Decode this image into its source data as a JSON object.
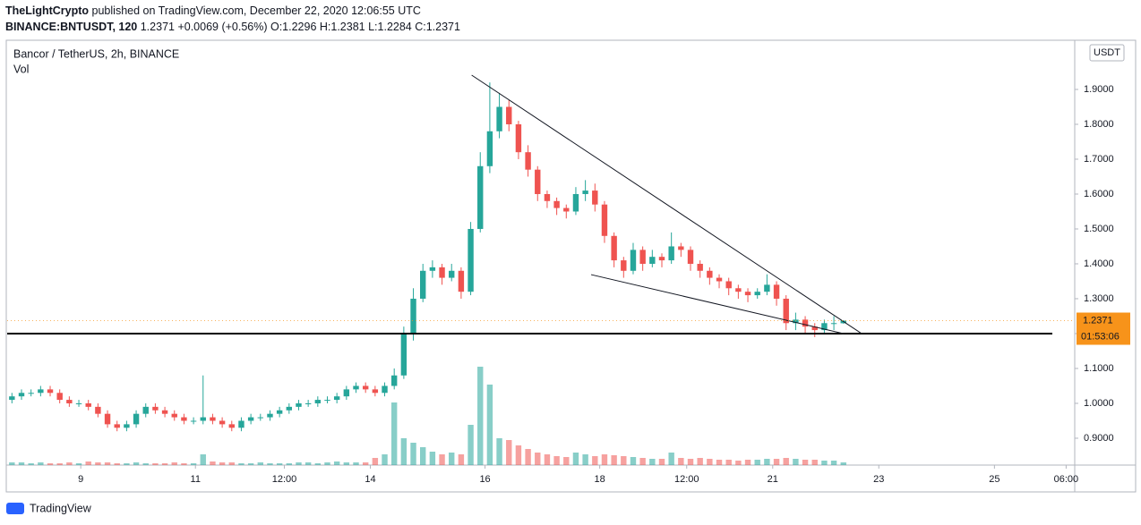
{
  "header": {
    "author": "TheLightCrypto",
    "published": "published on TradingView.com, December 22, 2020 12:06:55 UTC",
    "symbol": "BINANCE:BNTUSDT, 120",
    "quote": "1.2371 +0.0069 (+0.56%) O:1.2296 H:1.2381 L:1.2284 C:1.2371"
  },
  "footer": {
    "brand": "TradingView"
  },
  "chart_data": {
    "type": "candlestick",
    "title": "Bancor / TetherUS, 2h, BINANCE",
    "volume_title": "Vol",
    "currency": "USDT",
    "last_price": 1.2371,
    "last_price_label": "1.2371",
    "countdown": "01:53:06",
    "up_color": "#26a69a",
    "down_color": "#ef5350",
    "last_price_color": "#f7931a",
    "xlim": [
      -0.5,
      111.2
    ],
    "ylim": [
      0.823,
      2.041
    ],
    "volume_lim": [
      0,
      130
    ],
    "xticks": [
      {
        "value": 7.2,
        "label": "9"
      },
      {
        "value": 19.2,
        "label": "11"
      },
      {
        "value": 28.5,
        "label": "12:00"
      },
      {
        "value": 37.5,
        "label": "14"
      },
      {
        "value": 49.5,
        "label": "16"
      },
      {
        "value": 61.5,
        "label": "18"
      },
      {
        "value": 70.6,
        "label": "12:00"
      },
      {
        "value": 79.6,
        "label": "21"
      },
      {
        "value": 90.7,
        "label": "23"
      },
      {
        "value": 102.8,
        "label": "25"
      },
      {
        "value": 110.3,
        "label": "06:00"
      }
    ],
    "yticks": [
      {
        "value": 0.9,
        "label": "0.9000"
      },
      {
        "value": 1.0,
        "label": "1.0000"
      },
      {
        "value": 1.1,
        "label": "1.1000"
      },
      {
        "value": 1.2,
        "label": "1.2000"
      },
      {
        "value": 1.3,
        "label": "1.3000"
      },
      {
        "value": 1.4,
        "label": "1.4000"
      },
      {
        "value": 1.5,
        "label": "1.5000"
      },
      {
        "value": 1.6,
        "label": "1.6000"
      },
      {
        "value": 1.7,
        "label": "1.7000"
      },
      {
        "value": 1.8,
        "label": "1.8000"
      },
      {
        "value": 1.9,
        "label": "1.9000"
      }
    ],
    "hlines": [
      1.2
    ],
    "trendlines": [
      {
        "x": [
          48.1,
          88.9
        ],
        "y": [
          1.941,
          1.2
        ]
      },
      {
        "x": [
          60.6,
          87.0
        ],
        "y": [
          1.369,
          1.2
        ]
      }
    ],
    "open": [
      1.01,
      1.02,
      1.03,
      1.03,
      1.04,
      1.03,
      1.01,
      1.0,
      1.0,
      0.99,
      0.97,
      0.94,
      0.93,
      0.94,
      0.97,
      0.99,
      0.98,
      0.97,
      0.96,
      0.95,
      0.95,
      0.96,
      0.95,
      0.94,
      0.93,
      0.95,
      0.96,
      0.96,
      0.97,
      0.98,
      0.99,
      1.0,
      1.0,
      1.01,
      1.01,
      1.02,
      1.04,
      1.05,
      1.04,
      1.03,
      1.05,
      1.08,
      1.2,
      1.3,
      1.38,
      1.39,
      1.36,
      1.38,
      1.32,
      1.5,
      1.68,
      1.78,
      1.85,
      1.8,
      1.72,
      1.67,
      1.6,
      1.58,
      1.56,
      1.55,
      1.6,
      1.61,
      1.57,
      1.48,
      1.41,
      1.38,
      1.44,
      1.4,
      1.42,
      1.41,
      1.45,
      1.44,
      1.4,
      1.38,
      1.36,
      1.35,
      1.33,
      1.32,
      1.31,
      1.32,
      1.34,
      1.3,
      1.23,
      1.24,
      1.22,
      1.21,
      1.23,
      1.2296
    ],
    "high": [
      1.03,
      1.04,
      1.04,
      1.05,
      1.05,
      1.04,
      1.02,
      1.01,
      1.01,
      1.0,
      0.98,
      0.95,
      0.95,
      0.98,
      1.0,
      1.0,
      0.99,
      0.98,
      0.97,
      0.96,
      1.08,
      0.97,
      0.96,
      0.95,
      0.96,
      0.97,
      0.97,
      0.98,
      0.99,
      1.0,
      1.01,
      1.01,
      1.02,
      1.02,
      1.03,
      1.05,
      1.06,
      1.06,
      1.05,
      1.06,
      1.1,
      1.22,
      1.33,
      1.4,
      1.41,
      1.4,
      1.4,
      1.39,
      1.52,
      1.72,
      1.92,
      1.89,
      1.87,
      1.81,
      1.74,
      1.68,
      1.61,
      1.59,
      1.57,
      1.62,
      1.64,
      1.63,
      1.58,
      1.49,
      1.42,
      1.46,
      1.45,
      1.44,
      1.43,
      1.49,
      1.46,
      1.45,
      1.41,
      1.39,
      1.37,
      1.36,
      1.34,
      1.33,
      1.33,
      1.37,
      1.35,
      1.31,
      1.26,
      1.25,
      1.23,
      1.24,
      1.25,
      1.2381
    ],
    "low": [
      1.0,
      1.01,
      1.02,
      1.02,
      1.02,
      1.0,
      0.99,
      0.99,
      0.98,
      0.96,
      0.93,
      0.92,
      0.92,
      0.93,
      0.96,
      0.97,
      0.96,
      0.95,
      0.94,
      0.94,
      0.94,
      0.94,
      0.93,
      0.92,
      0.92,
      0.94,
      0.95,
      0.95,
      0.96,
      0.97,
      0.98,
      0.99,
      0.99,
      1.0,
      1.0,
      1.01,
      1.03,
      1.03,
      1.02,
      1.02,
      1.04,
      1.07,
      1.18,
      1.29,
      1.36,
      1.34,
      1.35,
      1.3,
      1.31,
      1.49,
      1.66,
      1.76,
      1.78,
      1.7,
      1.65,
      1.58,
      1.56,
      1.54,
      1.53,
      1.54,
      1.58,
      1.55,
      1.46,
      1.39,
      1.36,
      1.37,
      1.38,
      1.39,
      1.39,
      1.4,
      1.42,
      1.38,
      1.36,
      1.34,
      1.33,
      1.31,
      1.3,
      1.29,
      1.3,
      1.31,
      1.28,
      1.21,
      1.21,
      1.2,
      1.19,
      1.2,
      1.21,
      1.2284
    ],
    "close": [
      1.02,
      1.03,
      1.03,
      1.04,
      1.03,
      1.01,
      1.0,
      1.0,
      0.99,
      0.97,
      0.94,
      0.93,
      0.94,
      0.97,
      0.99,
      0.98,
      0.97,
      0.96,
      0.95,
      0.95,
      0.96,
      0.95,
      0.94,
      0.93,
      0.95,
      0.96,
      0.96,
      0.97,
      0.98,
      0.99,
      1.0,
      1.0,
      1.01,
      1.01,
      1.02,
      1.04,
      1.05,
      1.04,
      1.03,
      1.05,
      1.08,
      1.2,
      1.3,
      1.38,
      1.39,
      1.36,
      1.38,
      1.32,
      1.5,
      1.68,
      1.78,
      1.85,
      1.8,
      1.72,
      1.67,
      1.6,
      1.58,
      1.56,
      1.55,
      1.6,
      1.61,
      1.57,
      1.48,
      1.41,
      1.38,
      1.44,
      1.4,
      1.42,
      1.41,
      1.45,
      1.44,
      1.4,
      1.38,
      1.36,
      1.35,
      1.33,
      1.32,
      1.31,
      1.32,
      1.34,
      1.3,
      1.23,
      1.24,
      1.22,
      1.21,
      1.23,
      1.23,
      1.2371
    ],
    "volume": [
      3,
      3,
      2,
      3,
      2,
      2,
      3,
      2,
      4,
      3,
      3,
      2,
      2,
      3,
      2,
      2,
      2,
      3,
      2,
      2,
      12,
      4,
      3,
      3,
      2,
      2,
      3,
      2,
      2,
      2,
      3,
      3,
      2,
      3,
      4,
      3,
      3,
      3,
      8,
      12,
      70,
      30,
      25,
      20,
      15,
      12,
      14,
      12,
      45,
      110,
      90,
      30,
      28,
      22,
      18,
      14,
      12,
      10,
      9,
      14,
      12,
      10,
      12,
      11,
      10,
      9,
      8,
      7,
      7,
      14,
      8,
      7,
      8,
      7,
      6,
      6,
      5,
      6,
      6,
      7,
      7,
      8,
      7,
      6,
      6,
      5,
      5,
      3
    ]
  }
}
